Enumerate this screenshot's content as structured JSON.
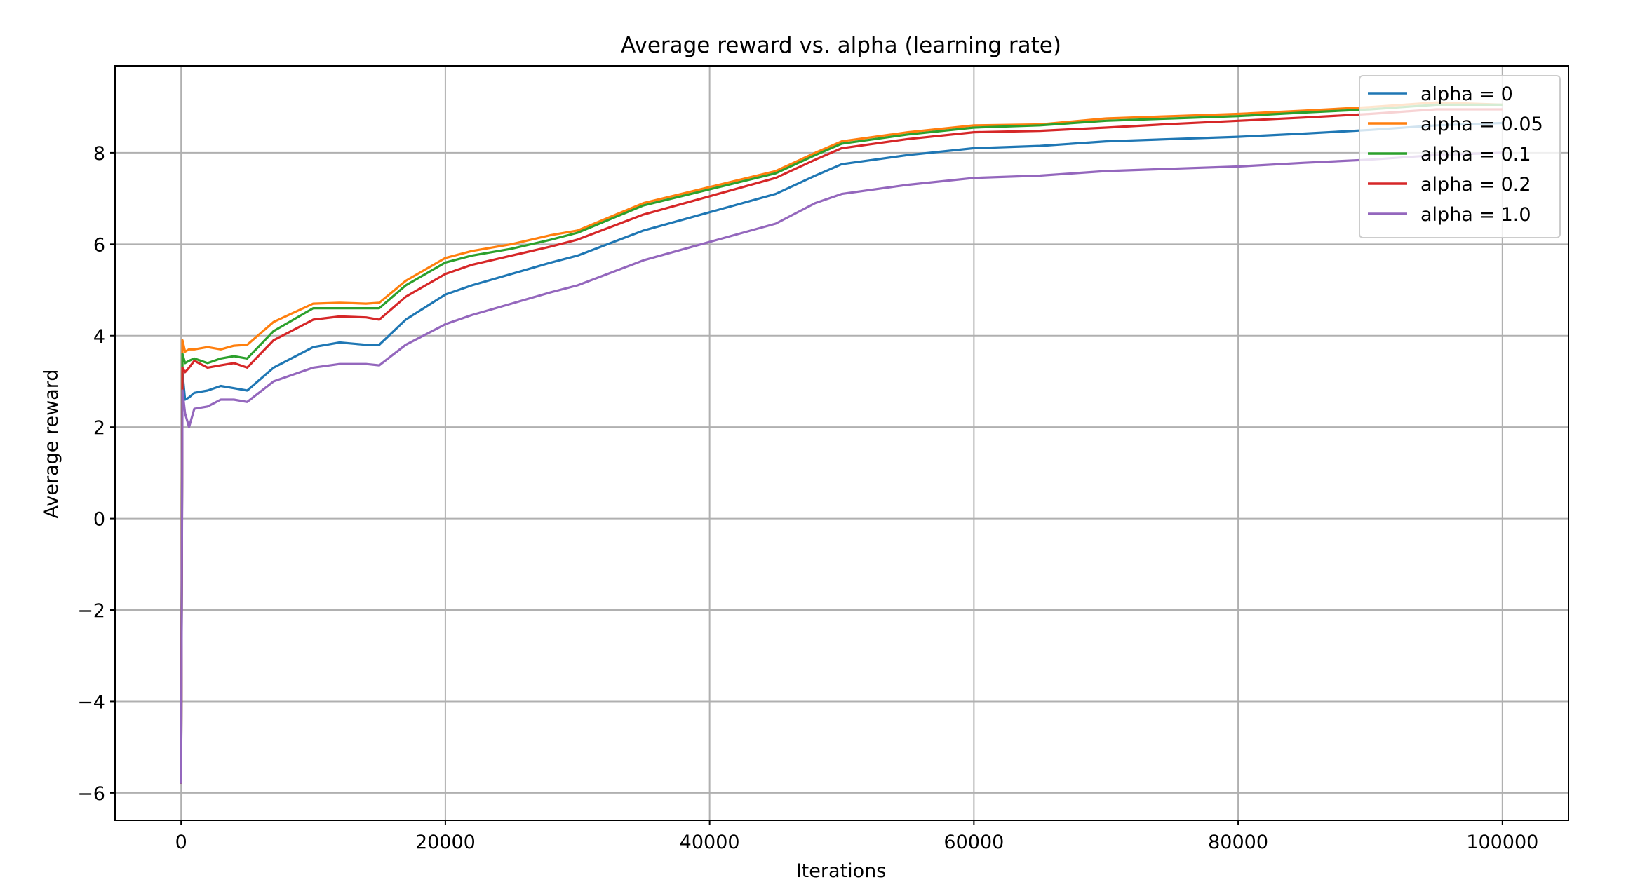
{
  "chart_data": {
    "type": "line",
    "title": "Average reward vs. alpha (learning rate)",
    "xlabel": "Iterations",
    "ylabel": "Average reward",
    "xlim": [
      -5000,
      105000
    ],
    "ylim": [
      -6.6,
      9.9
    ],
    "xticks": [
      0,
      20000,
      40000,
      60000,
      80000,
      100000
    ],
    "yticks": [
      -6,
      -4,
      -2,
      0,
      2,
      4,
      6,
      8
    ],
    "xtick_labels": [
      "0",
      "20000",
      "40000",
      "60000",
      "80000",
      "100000"
    ],
    "ytick_labels": [
      "−6",
      "−4",
      "−2",
      "0",
      "2",
      "4",
      "6",
      "8"
    ],
    "grid": true,
    "legend_position": "top-right",
    "series": [
      {
        "name": "alpha = 0",
        "color": "#1f77b4",
        "x": [
          0,
          100,
          300,
          600,
          1000,
          2000,
          3000,
          4000,
          5000,
          7000,
          10000,
          12000,
          14000,
          15000,
          17000,
          20000,
          22000,
          25000,
          28000,
          30000,
          35000,
          40000,
          45000,
          48000,
          50000,
          55000,
          60000,
          65000,
          70000,
          75000,
          80000,
          85000,
          90000,
          95000,
          100000
        ],
        "y": [
          -5.8,
          3.2,
          2.6,
          2.65,
          2.75,
          2.8,
          2.9,
          2.85,
          2.8,
          3.3,
          3.75,
          3.85,
          3.8,
          3.8,
          4.35,
          4.9,
          5.1,
          5.35,
          5.6,
          5.75,
          6.3,
          6.7,
          7.1,
          7.5,
          7.75,
          7.95,
          8.1,
          8.15,
          8.25,
          8.3,
          8.35,
          8.42,
          8.5,
          8.6,
          8.65
        ]
      },
      {
        "name": "alpha = 0.05",
        "color": "#ff7f0e",
        "x": [
          0,
          100,
          300,
          600,
          1000,
          2000,
          3000,
          4000,
          5000,
          7000,
          10000,
          12000,
          14000,
          15000,
          17000,
          20000,
          22000,
          25000,
          28000,
          30000,
          35000,
          40000,
          45000,
          48000,
          50000,
          55000,
          60000,
          65000,
          70000,
          75000,
          80000,
          85000,
          90000,
          95000,
          100000
        ],
        "y": [
          -5.8,
          3.9,
          3.65,
          3.7,
          3.7,
          3.75,
          3.7,
          3.78,
          3.8,
          4.3,
          4.7,
          4.72,
          4.7,
          4.72,
          5.2,
          5.7,
          5.85,
          6.0,
          6.2,
          6.3,
          6.9,
          7.25,
          7.6,
          8.0,
          8.25,
          8.45,
          8.6,
          8.62,
          8.75,
          8.8,
          8.85,
          8.92,
          9.0,
          9.1,
          9.05
        ]
      },
      {
        "name": "alpha = 0.1",
        "color": "#2ca02c",
        "x": [
          0,
          100,
          300,
          600,
          1000,
          2000,
          3000,
          4000,
          5000,
          7000,
          10000,
          12000,
          14000,
          15000,
          17000,
          20000,
          22000,
          25000,
          28000,
          30000,
          35000,
          40000,
          45000,
          48000,
          50000,
          55000,
          60000,
          65000,
          70000,
          75000,
          80000,
          85000,
          90000,
          95000,
          100000
        ],
        "y": [
          -5.8,
          3.6,
          3.4,
          3.45,
          3.5,
          3.4,
          3.5,
          3.55,
          3.5,
          4.1,
          4.6,
          4.6,
          4.6,
          4.6,
          5.1,
          5.6,
          5.75,
          5.9,
          6.1,
          6.25,
          6.85,
          7.2,
          7.55,
          7.95,
          8.2,
          8.4,
          8.55,
          8.6,
          8.7,
          8.75,
          8.8,
          8.88,
          8.95,
          9.05,
          9.05
        ]
      },
      {
        "name": "alpha = 0.2",
        "color": "#d62728",
        "x": [
          0,
          100,
          300,
          600,
          1000,
          2000,
          3000,
          4000,
          5000,
          7000,
          10000,
          12000,
          14000,
          15000,
          17000,
          20000,
          22000,
          25000,
          28000,
          30000,
          35000,
          40000,
          45000,
          48000,
          50000,
          55000,
          60000,
          65000,
          70000,
          75000,
          80000,
          85000,
          90000,
          95000,
          100000
        ],
        "y": [
          -5.8,
          3.3,
          3.2,
          3.3,
          3.45,
          3.3,
          3.35,
          3.4,
          3.3,
          3.9,
          4.35,
          4.42,
          4.4,
          4.35,
          4.85,
          5.35,
          5.55,
          5.75,
          5.95,
          6.1,
          6.65,
          7.05,
          7.45,
          7.85,
          8.1,
          8.3,
          8.45,
          8.48,
          8.55,
          8.63,
          8.7,
          8.77,
          8.85,
          8.95,
          8.95
        ]
      },
      {
        "name": "alpha = 1.0",
        "color": "#9467bd",
        "x": [
          0,
          100,
          300,
          600,
          1000,
          2000,
          3000,
          4000,
          5000,
          7000,
          10000,
          12000,
          14000,
          15000,
          17000,
          20000,
          22000,
          25000,
          28000,
          30000,
          35000,
          40000,
          45000,
          48000,
          50000,
          55000,
          60000,
          65000,
          70000,
          75000,
          80000,
          85000,
          90000,
          95000,
          100000
        ],
        "y": [
          -5.8,
          2.8,
          2.3,
          2.0,
          2.4,
          2.45,
          2.6,
          2.6,
          2.55,
          3.0,
          3.3,
          3.38,
          3.38,
          3.35,
          3.8,
          4.25,
          4.45,
          4.7,
          4.95,
          5.1,
          5.65,
          6.05,
          6.45,
          6.9,
          7.1,
          7.3,
          7.45,
          7.5,
          7.6,
          7.65,
          7.7,
          7.78,
          7.85,
          7.95,
          8.0
        ]
      }
    ]
  }
}
